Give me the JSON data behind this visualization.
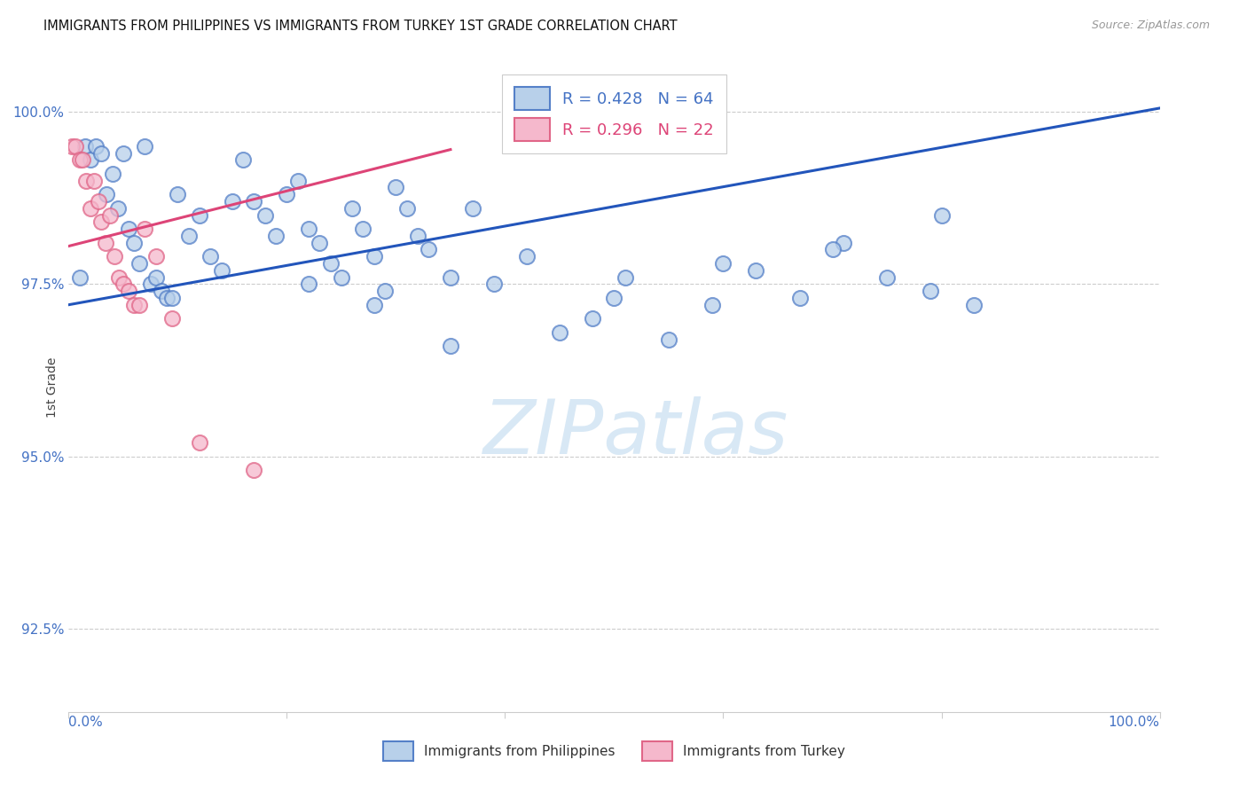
{
  "title": "IMMIGRANTS FROM PHILIPPINES VS IMMIGRANTS FROM TURKEY 1ST GRADE CORRELATION CHART",
  "source": "Source: ZipAtlas.com",
  "ylabel": "1st Grade",
  "ytick_labels": [
    "92.5%",
    "95.0%",
    "97.5%",
    "100.0%"
  ],
  "ytick_values": [
    92.5,
    95.0,
    97.5,
    100.0
  ],
  "xmin": 0.0,
  "xmax": 100.0,
  "ymin": 91.3,
  "ymax": 100.7,
  "legend_blue_r": "R = 0.428",
  "legend_blue_n": "N = 64",
  "legend_pink_r": "R = 0.296",
  "legend_pink_n": "N = 22",
  "blue_fill": "#b8d0ea",
  "blue_edge": "#5580c8",
  "pink_fill": "#f5b8cc",
  "pink_edge": "#e06688",
  "blue_line": "#2255bb",
  "pink_line": "#dd4477",
  "blue_legend_color": "#4472c4",
  "pink_legend_color": "#dd4477",
  "title_color": "#111111",
  "source_color": "#999999",
  "axis_tick_color": "#4472c4",
  "watermark_color": "#d8e8f5",
  "grid_color": "#cccccc",
  "blue_x": [
    1.0,
    1.5,
    2.0,
    2.5,
    3.0,
    3.5,
    4.0,
    4.5,
    5.0,
    5.5,
    6.0,
    6.5,
    7.0,
    7.5,
    8.0,
    8.5,
    9.0,
    9.5,
    10.0,
    11.0,
    12.0,
    13.0,
    14.0,
    15.0,
    16.0,
    17.0,
    18.0,
    19.0,
    20.0,
    21.0,
    22.0,
    23.0,
    24.0,
    25.0,
    26.0,
    27.0,
    28.0,
    29.0,
    30.0,
    31.0,
    32.0,
    33.0,
    35.0,
    37.0,
    39.0,
    42.0,
    45.0,
    48.0,
    51.0,
    55.0,
    59.0,
    63.0,
    67.0,
    71.0,
    75.0,
    79.0,
    83.0,
    22.0,
    28.0,
    35.0,
    50.0,
    60.0,
    70.0,
    80.0
  ],
  "blue_y": [
    97.6,
    99.5,
    99.3,
    99.5,
    99.4,
    98.8,
    99.1,
    98.6,
    99.4,
    98.3,
    98.1,
    97.8,
    99.5,
    97.5,
    97.6,
    97.4,
    97.3,
    97.3,
    98.8,
    98.2,
    98.5,
    97.9,
    97.7,
    98.7,
    99.3,
    98.7,
    98.5,
    98.2,
    98.8,
    99.0,
    98.3,
    98.1,
    97.8,
    97.6,
    98.6,
    98.3,
    97.9,
    97.4,
    98.9,
    98.6,
    98.2,
    98.0,
    97.6,
    98.6,
    97.5,
    97.9,
    96.8,
    97.0,
    97.6,
    96.7,
    97.2,
    97.7,
    97.3,
    98.1,
    97.6,
    97.4,
    97.2,
    97.5,
    97.2,
    96.6,
    97.3,
    97.8,
    98.0,
    98.5
  ],
  "pink_x": [
    0.3,
    0.6,
    1.0,
    1.3,
    1.6,
    2.0,
    2.3,
    2.7,
    3.0,
    3.4,
    3.8,
    4.2,
    4.6,
    5.0,
    5.5,
    6.0,
    6.5,
    7.0,
    8.0,
    9.5,
    12.0,
    17.0
  ],
  "pink_y": [
    99.5,
    99.5,
    99.3,
    99.3,
    99.0,
    98.6,
    99.0,
    98.7,
    98.4,
    98.1,
    98.5,
    97.9,
    97.6,
    97.5,
    97.4,
    97.2,
    97.2,
    98.3,
    97.9,
    97.0,
    95.2,
    94.8
  ],
  "blue_trend_x0": 0.0,
  "blue_trend_y0": 97.2,
  "blue_trend_x1": 100.0,
  "blue_trend_y1": 100.05,
  "pink_trend_x0": 0.0,
  "pink_trend_y0": 98.05,
  "pink_trend_x1": 35.0,
  "pink_trend_y1": 99.45
}
